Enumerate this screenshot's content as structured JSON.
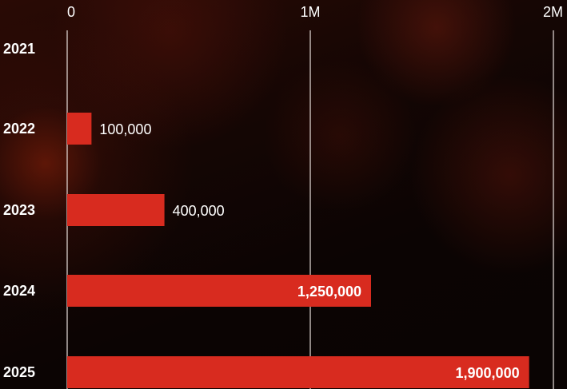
{
  "chart_data": {
    "type": "bar",
    "orientation": "horizontal",
    "categories": [
      "2021",
      "2022",
      "2023",
      "2024",
      "2025"
    ],
    "values": [
      0,
      100000,
      400000,
      1250000,
      1900000
    ],
    "value_labels": [
      "",
      "100,000",
      "400,000",
      "1,250,000",
      "1,900,000"
    ],
    "xlim": [
      0,
      2000000
    ],
    "x_ticks": [
      0,
      1000000,
      2000000
    ],
    "x_tick_labels": [
      "0",
      "1M",
      "2M"
    ],
    "grid": true,
    "colors": {
      "bar": "#d82b1f",
      "grid": "#e8e0dc",
      "text": "#ffffff"
    }
  }
}
